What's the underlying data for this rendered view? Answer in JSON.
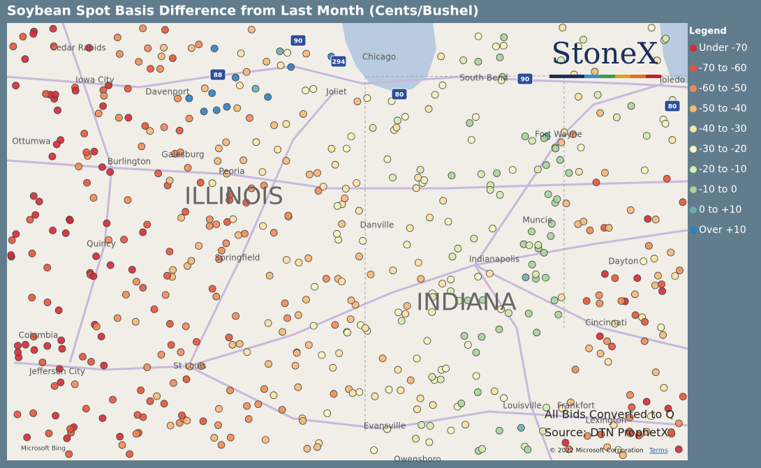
{
  "title": "Soybean Spot Basis Difference from Last Month (Cents/Bushel)",
  "legend": {
    "title": "Legend",
    "items": [
      {
        "label": "Under -70",
        "color": "#d42a34"
      },
      {
        "label": "-70 to -60",
        "color": "#e5553a"
      },
      {
        "label": "-60 to -50",
        "color": "#ef8b55"
      },
      {
        "label": "-50 to -40",
        "color": "#f6b777"
      },
      {
        "label": "-40 to -30",
        "color": "#fbe1a2"
      },
      {
        "label": "-30 to -20",
        "color": "#f3f5c0"
      },
      {
        "label": "-20 to -10",
        "color": "#d6ecac"
      },
      {
        "label": "-10 to 0",
        "color": "#a6d49a"
      },
      {
        "label": "0 to +10",
        "color": "#6aaeb0"
      },
      {
        "label": "Over +10",
        "color": "#2f7fc0"
      }
    ]
  },
  "map": {
    "places": [
      "Cedar Rapids",
      "Iowa City",
      "Davenport",
      "Ottumwa",
      "Burlington",
      "Galesburg",
      "Peoria",
      "ILLINOIS",
      "Quincy",
      "Springfield",
      "Columbia",
      "Jefferson City",
      "St Louis",
      "Chicago",
      "Joliet",
      "South Bend",
      "Fort Wayne",
      "Toledo",
      "Danville",
      "Muncie",
      "Indianapolis",
      "INDIANA",
      "Dayton",
      "Cincinnati",
      "Louisville",
      "Frankfort",
      "Lexington",
      "Evansville",
      "Owensboro"
    ],
    "shields": [
      "90",
      "294",
      "88",
      "80",
      "90",
      "80"
    ],
    "logo": "StoneX",
    "notes": [
      "All Bids Converted to Q",
      "Source: DTN ProphetX"
    ],
    "provider": "Microsoft Bing",
    "copyright": "© 2022 Microsoft Corporation",
    "terms": "Terms"
  }
}
